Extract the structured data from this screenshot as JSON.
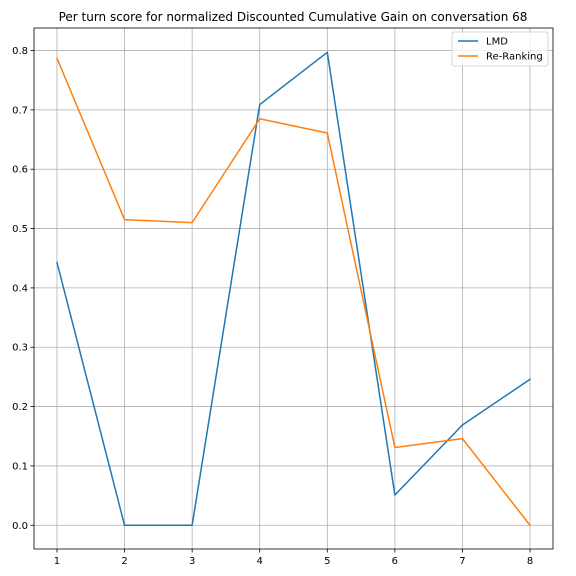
{
  "chart_data": {
    "type": "line",
    "title": "Per turn score for normalized Discounted Cumulative Gain on conversation 68",
    "xlabel": "",
    "ylabel": "",
    "x": [
      1,
      2,
      3,
      4,
      5,
      6,
      7,
      8
    ],
    "xticks": [
      "1",
      "2",
      "3",
      "4",
      "5",
      "6",
      "7",
      "8"
    ],
    "yticks": [
      "0.0",
      "0.1",
      "0.2",
      "0.3",
      "0.4",
      "0.5",
      "0.6",
      "0.7",
      "0.8"
    ],
    "xlim": [
      0.66,
      8.34
    ],
    "ylim": [
      -0.04,
      0.838
    ],
    "grid": true,
    "legend_position": "top-right",
    "series": [
      {
        "name": "LMD",
        "color": "#1f77b4",
        "values": [
          0.443,
          0.0,
          0.0,
          0.709,
          0.797,
          0.051,
          0.169,
          0.246
        ]
      },
      {
        "name": "Re-Ranking",
        "color": "#ff7f0e",
        "values": [
          0.787,
          0.515,
          0.51,
          0.685,
          0.661,
          0.131,
          0.146,
          0.0
        ]
      }
    ]
  }
}
